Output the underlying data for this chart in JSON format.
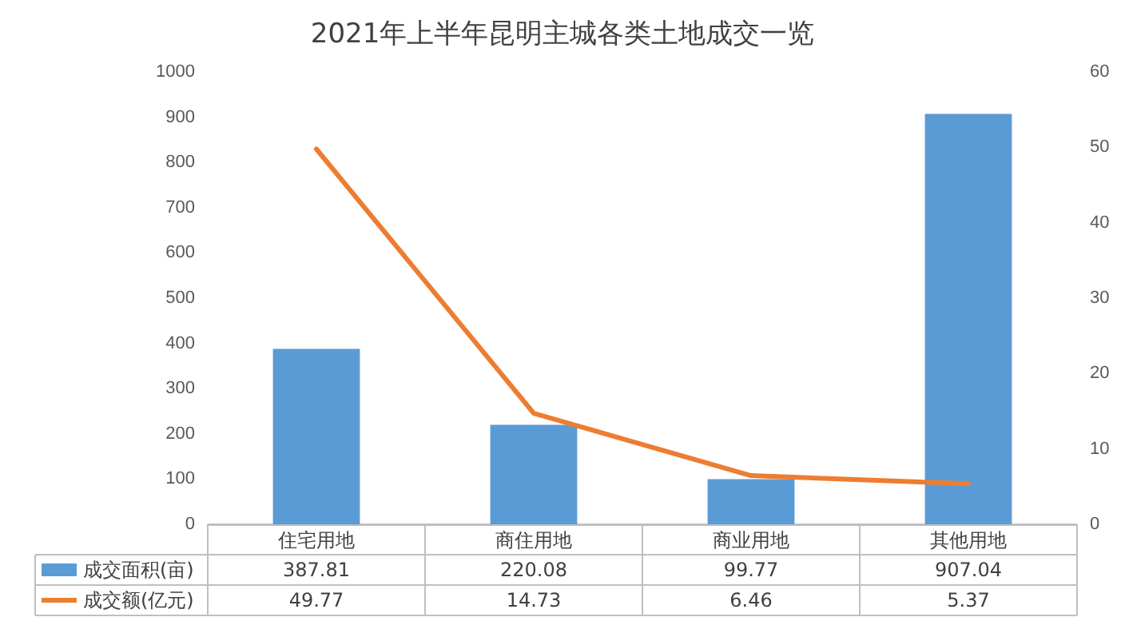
{
  "chart_data": {
    "type": "bar",
    "title": "2021年上半年昆明主城各类土地成交一览",
    "categories": [
      "住宅用地",
      "商住用地",
      "商业用地",
      "其他用地"
    ],
    "series": [
      {
        "name": "成交面积(亩)",
        "color": "#5b9bd5",
        "values": [
          387.81,
          220.08,
          99.77,
          907.04
        ]
      },
      {
        "name": "成交额(亿元)",
        "type": "line",
        "axis": "y2",
        "color": "#ed7d31",
        "values": [
          49.77,
          14.73,
          6.46,
          5.37
        ]
      }
    ],
    "ylim": [
      0,
      1000
    ],
    "yticks": [
      0,
      100,
      200,
      300,
      400,
      500,
      600,
      700,
      800,
      900,
      1000
    ],
    "y2lim": [
      0,
      60
    ],
    "y2ticks": [
      0,
      10,
      20,
      30,
      40,
      50,
      60
    ],
    "grid": false,
    "legend": "bottom",
    "data_labels": true,
    "marker": "none",
    "line_style": "solid"
  }
}
